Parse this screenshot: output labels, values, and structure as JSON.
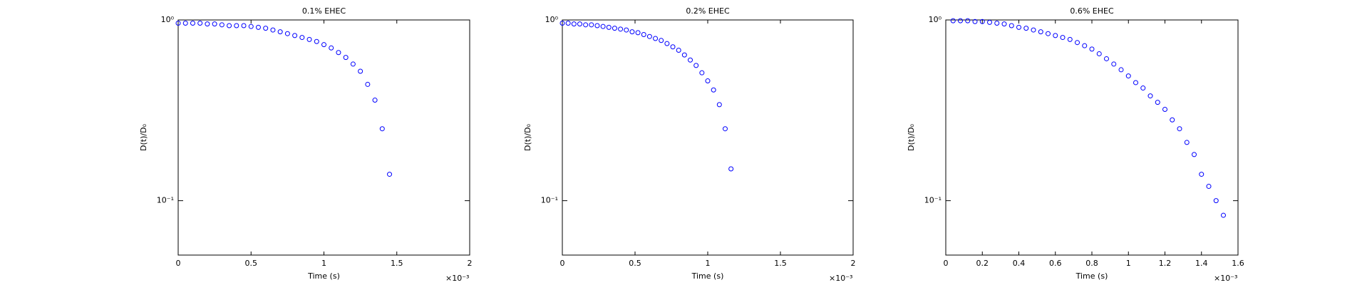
{
  "chart_data": [
    {
      "type": "scatter",
      "title": "0.1% EHEC",
      "x_label": "Time (s)",
      "y_label": "D(t)/D₀",
      "x_scale_label": "×10⁻³",
      "color": "#0000ff",
      "log_y": true,
      "x": [
        0,
        0.05,
        0.1,
        0.15,
        0.2,
        0.25,
        0.3,
        0.35,
        0.4,
        0.45,
        0.5,
        0.55,
        0.6,
        0.65,
        0.7,
        0.75,
        0.8,
        0.85,
        0.9,
        0.95,
        1.0,
        1.05,
        1.1,
        1.15,
        1.2,
        1.25,
        1.3,
        1.35,
        1.4,
        1.45
      ],
      "values": [
        0.96,
        0.96,
        0.96,
        0.96,
        0.95,
        0.95,
        0.94,
        0.93,
        0.93,
        0.93,
        0.92,
        0.91,
        0.9,
        0.88,
        0.86,
        0.84,
        0.82,
        0.8,
        0.78,
        0.76,
        0.73,
        0.7,
        0.66,
        0.62,
        0.57,
        0.52,
        0.44,
        0.36,
        0.25,
        0.14
      ],
      "xlim": [
        0,
        2
      ],
      "ylim": [
        0.05,
        1
      ],
      "xticks": [
        0,
        0.5,
        1,
        1.5,
        2
      ],
      "yticks": [
        {
          "value": 0.1,
          "label": "10⁻¹"
        },
        {
          "value": 1,
          "label": "10⁰"
        }
      ]
    },
    {
      "type": "scatter",
      "title": "0.2% EHEC",
      "x_label": "Time (s)",
      "y_label": "D(t)/D₀",
      "x_scale_label": "×10⁻³",
      "color": "#0000ff",
      "log_y": true,
      "x": [
        0,
        0.04,
        0.08,
        0.12,
        0.16,
        0.2,
        0.24,
        0.28,
        0.32,
        0.36,
        0.4,
        0.44,
        0.48,
        0.52,
        0.56,
        0.6,
        0.64,
        0.68,
        0.72,
        0.76,
        0.8,
        0.84,
        0.88,
        0.92,
        0.96,
        1.0,
        1.04,
        1.08,
        1.12,
        1.16
      ],
      "values": [
        0.96,
        0.96,
        0.95,
        0.95,
        0.94,
        0.94,
        0.93,
        0.92,
        0.91,
        0.9,
        0.89,
        0.88,
        0.86,
        0.85,
        0.83,
        0.81,
        0.79,
        0.77,
        0.74,
        0.71,
        0.68,
        0.64,
        0.6,
        0.56,
        0.51,
        0.46,
        0.41,
        0.34,
        0.25,
        0.15
      ],
      "xlim": [
        0,
        2
      ],
      "ylim": [
        0.05,
        1
      ],
      "xticks": [
        0,
        0.5,
        1,
        1.5,
        2
      ],
      "yticks": [
        {
          "value": 0.1,
          "label": "10⁻¹"
        },
        {
          "value": 1,
          "label": "10⁰"
        }
      ]
    },
    {
      "type": "scatter",
      "title": "0.6% EHEC",
      "x_label": "Time (s)",
      "y_label": "D(t)/D₀",
      "x_scale_label": "×10⁻³",
      "color": "#0000ff",
      "log_y": true,
      "x": [
        0.04,
        0.08,
        0.12,
        0.16,
        0.2,
        0.24,
        0.28,
        0.32,
        0.36,
        0.4,
        0.44,
        0.48,
        0.52,
        0.56,
        0.6,
        0.64,
        0.68,
        0.72,
        0.76,
        0.8,
        0.84,
        0.88,
        0.92,
        0.96,
        1.0,
        1.04,
        1.08,
        1.12,
        1.16,
        1.2,
        1.24,
        1.28,
        1.32,
        1.36,
        1.4,
        1.44,
        1.48,
        1.52
      ],
      "values": [
        0.99,
        0.99,
        0.99,
        0.98,
        0.98,
        0.97,
        0.96,
        0.95,
        0.93,
        0.91,
        0.9,
        0.88,
        0.86,
        0.84,
        0.82,
        0.8,
        0.78,
        0.75,
        0.72,
        0.69,
        0.65,
        0.61,
        0.57,
        0.53,
        0.49,
        0.45,
        0.42,
        0.38,
        0.35,
        0.32,
        0.28,
        0.25,
        0.21,
        0.18,
        0.14,
        0.12,
        0.1,
        0.083
      ],
      "xlim": [
        0,
        1.6
      ],
      "ylim": [
        0.05,
        1
      ],
      "xticks": [
        0,
        0.2,
        0.4,
        0.6,
        0.8,
        1,
        1.2,
        1.4,
        1.6
      ],
      "yticks": [
        {
          "value": 0.1,
          "label": "10⁻¹"
        },
        {
          "value": 1,
          "label": "10⁰"
        }
      ]
    }
  ]
}
